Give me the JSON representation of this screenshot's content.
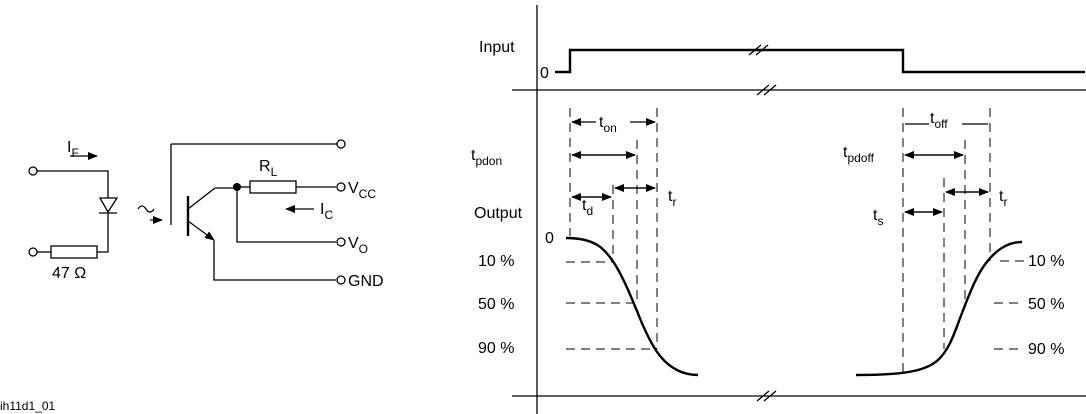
{
  "circuit": {
    "if_label": "I",
    "if_sub": "F",
    "rl_label": "R",
    "rl_sub": "L",
    "vcc_label": "V",
    "vcc_sub": "CC",
    "ic_label": "I",
    "ic_sub": "C",
    "vo_label": "V",
    "vo_sub": "O",
    "gnd_label": "GND",
    "resistor_label": "47 Ω"
  },
  "figure_id": "ih11d1_01",
  "timing": {
    "input_label": "Input",
    "input_zero": "0",
    "output_label": "Output",
    "output_zero": "0",
    "tpdon_label": "t",
    "tpdon_sub": "pdon",
    "tpdoff_label": "t",
    "tpdoff_sub": "pdoff",
    "ton_label": "t",
    "ton_sub": "on",
    "toff_label": "t",
    "toff_sub": "off",
    "td_label": "t",
    "td_sub": "d",
    "tr1_label": "t",
    "tr1_sub": "r",
    "ts_label": "t",
    "ts_sub": "s",
    "tr2_label": "t",
    "tr2_sub": "r",
    "left_levels": [
      "10 %",
      "50 %",
      "90 %"
    ],
    "right_levels": [
      "10 %",
      "50 %",
      "90 %"
    ]
  }
}
